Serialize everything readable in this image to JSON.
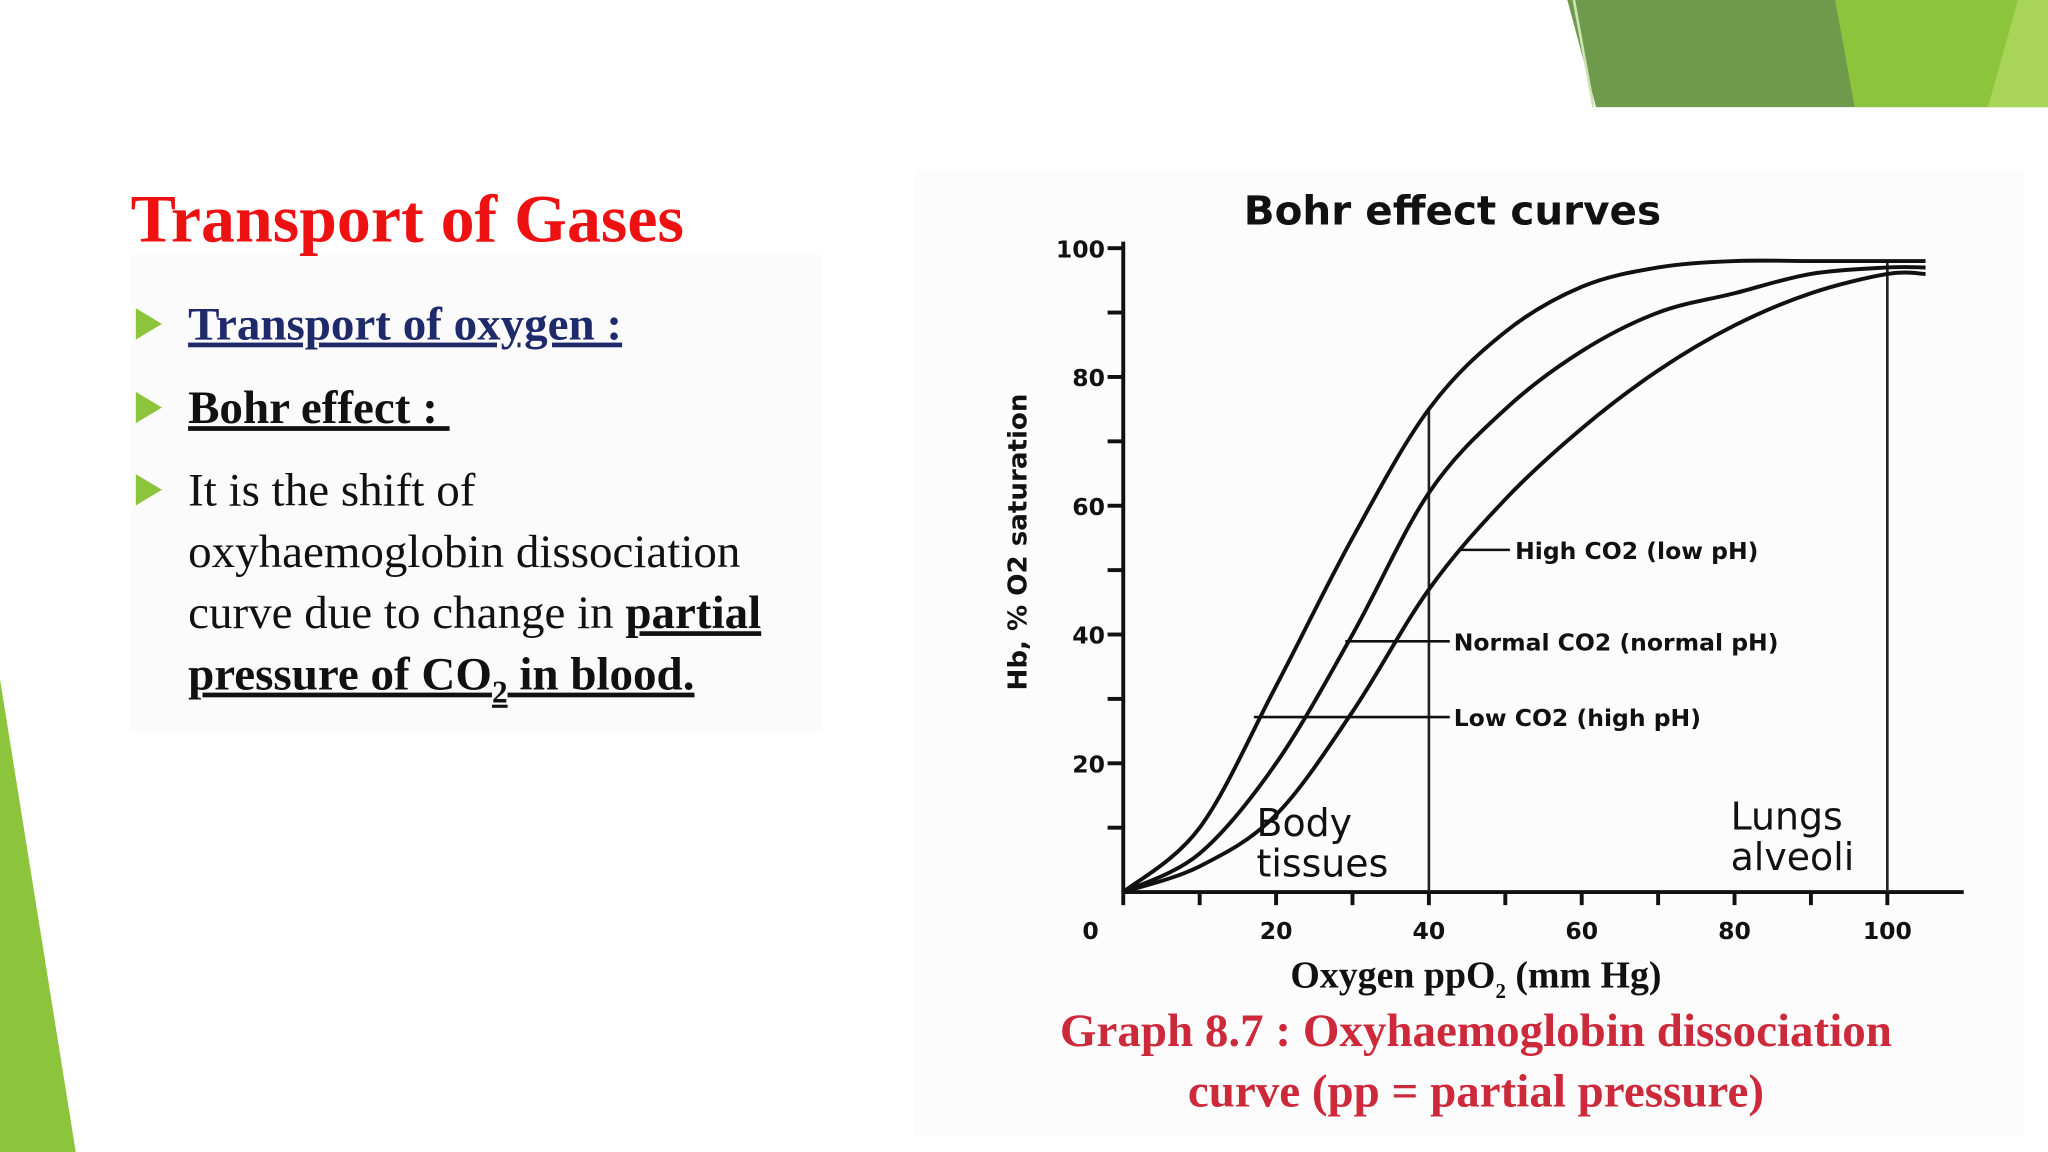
{
  "slide": {
    "title": "Transport of Gases",
    "bullets": [
      {
        "text": "Transport of oxygen :"
      },
      {
        "text": "Bohr effect : "
      },
      {
        "lines": [
          [
            "It is the shift of"
          ],
          [
            "oxyhaemoglobin dissociation"
          ],
          [
            "curve due to change in ",
            "partial"
          ],
          [
            "pressure of CO",
            "2",
            " in blood."
          ]
        ]
      }
    ]
  },
  "chart_data": {
    "type": "line",
    "title": "Bohr effect curves",
    "xlabel": [
      "Oxygen ppO",
      "2",
      " (mm Hg)"
    ],
    "ylabel": "Hb, % O2 saturation",
    "x": [
      0,
      10,
      20,
      30,
      40,
      50,
      60,
      70,
      80,
      90,
      100,
      105
    ],
    "series": [
      {
        "name": "High CO2 (low pH)",
        "color": "#111111",
        "values": [
          0,
          4,
          12,
          28,
          47,
          61,
          72,
          81,
          88,
          93,
          96,
          96
        ]
      },
      {
        "name": "Normal CO2 (normal pH)",
        "color": "#111111",
        "values": [
          0,
          6,
          20,
          40,
          62,
          75,
          84,
          90,
          93,
          96,
          97,
          97
        ]
      },
      {
        "name": "Low CO2 (high pH)",
        "color": "#111111",
        "values": [
          0,
          10,
          32,
          55,
          75,
          87,
          94,
          97,
          98,
          98,
          98,
          98
        ]
      }
    ],
    "reference_lines": [
      {
        "x": 40,
        "y": 75
      },
      {
        "x": 100,
        "y": 98
      }
    ],
    "annotations": [
      [
        "Body",
        "tissues"
      ],
      [
        "Lungs",
        "alveoli"
      ]
    ],
    "xlim": [
      0,
      110
    ],
    "ylim": [
      0,
      100
    ],
    "xticks": [
      0,
      20,
      40,
      60,
      80,
      100
    ],
    "xminorticks": [
      10,
      30,
      50,
      70,
      90
    ],
    "yticks": [
      20,
      40,
      60,
      80,
      100
    ],
    "yminorticks": [
      10,
      30,
      50,
      70,
      90
    ],
    "caption": [
      "Graph 8.7 : Oxyhaemoglobin dissociation",
      "curve (pp = partial pressure)"
    ]
  }
}
